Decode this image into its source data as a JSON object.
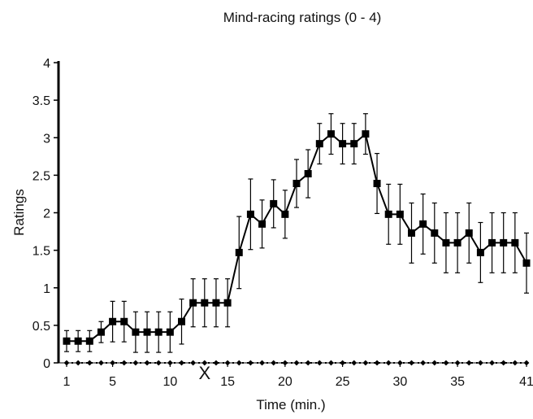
{
  "chart_data": {
    "type": "line",
    "title": "Mind-racing ratings (0 - 4)",
    "xlabel": "Time (min.)",
    "ylabel": "Ratings",
    "xlim": [
      1,
      41
    ],
    "ylim": [
      0,
      4
    ],
    "x_ticks": [
      "1",
      "5",
      "10",
      "15",
      "20",
      "25",
      "30",
      "35",
      "41"
    ],
    "y_ticks": [
      "0",
      "0.5",
      "1",
      "1.5",
      "2",
      "2.5",
      "3",
      "3.5",
      "4"
    ],
    "grid": false,
    "annotation": {
      "text": "X",
      "x": 13,
      "y": 0
    },
    "series": [
      {
        "marker": "square",
        "x": [
          1,
          2,
          3,
          4,
          5,
          6,
          7,
          8,
          9,
          10,
          11,
          12,
          13,
          14,
          15,
          16,
          17,
          18,
          19,
          20,
          21,
          22,
          23,
          24,
          25,
          26,
          27,
          28,
          29,
          30,
          31,
          32,
          33,
          34,
          35,
          36,
          37,
          38,
          39,
          40,
          41
        ],
        "y": [
          0.29,
          0.29,
          0.29,
          0.41,
          0.55,
          0.55,
          0.41,
          0.41,
          0.41,
          0.41,
          0.55,
          0.8,
          0.8,
          0.8,
          0.8,
          1.47,
          1.98,
          1.85,
          2.12,
          1.98,
          2.39,
          2.52,
          2.92,
          3.05,
          2.92,
          2.92,
          3.05,
          2.39,
          1.98,
          1.98,
          1.73,
          1.85,
          1.73,
          1.6,
          1.6,
          1.73,
          1.47,
          1.6,
          1.6,
          1.6,
          1.33
        ],
        "error": [
          0.14,
          0.14,
          0.14,
          0.14,
          0.27,
          0.27,
          0.27,
          0.27,
          0.27,
          0.27,
          0.3,
          0.32,
          0.32,
          0.32,
          0.32,
          0.48,
          0.47,
          0.32,
          0.32,
          0.32,
          0.32,
          0.32,
          0.27,
          0.27,
          0.27,
          0.27,
          0.27,
          0.4,
          0.4,
          0.4,
          0.4,
          0.4,
          0.4,
          0.4,
          0.4,
          0.4,
          0.4,
          0.4,
          0.4,
          0.4,
          0.4
        ]
      },
      {
        "marker": "diamond",
        "x": [
          1,
          2,
          3,
          4,
          5,
          6,
          7,
          8,
          9,
          10,
          11,
          12,
          13,
          14,
          15,
          16,
          17,
          18,
          19,
          20,
          21,
          22,
          23,
          24,
          25,
          26,
          27,
          28,
          29,
          30,
          31,
          32,
          33,
          34,
          35,
          36,
          37,
          38,
          39,
          40,
          41
        ],
        "y": [
          0,
          0,
          0,
          0,
          0,
          0,
          0,
          0,
          0,
          0,
          0,
          0,
          0,
          0,
          0,
          0,
          0,
          0,
          0,
          0,
          0,
          0,
          0,
          0,
          0,
          0,
          0,
          0,
          0,
          0,
          0,
          0,
          0,
          0,
          0,
          0,
          0,
          0,
          0,
          0,
          0
        ]
      }
    ]
  }
}
